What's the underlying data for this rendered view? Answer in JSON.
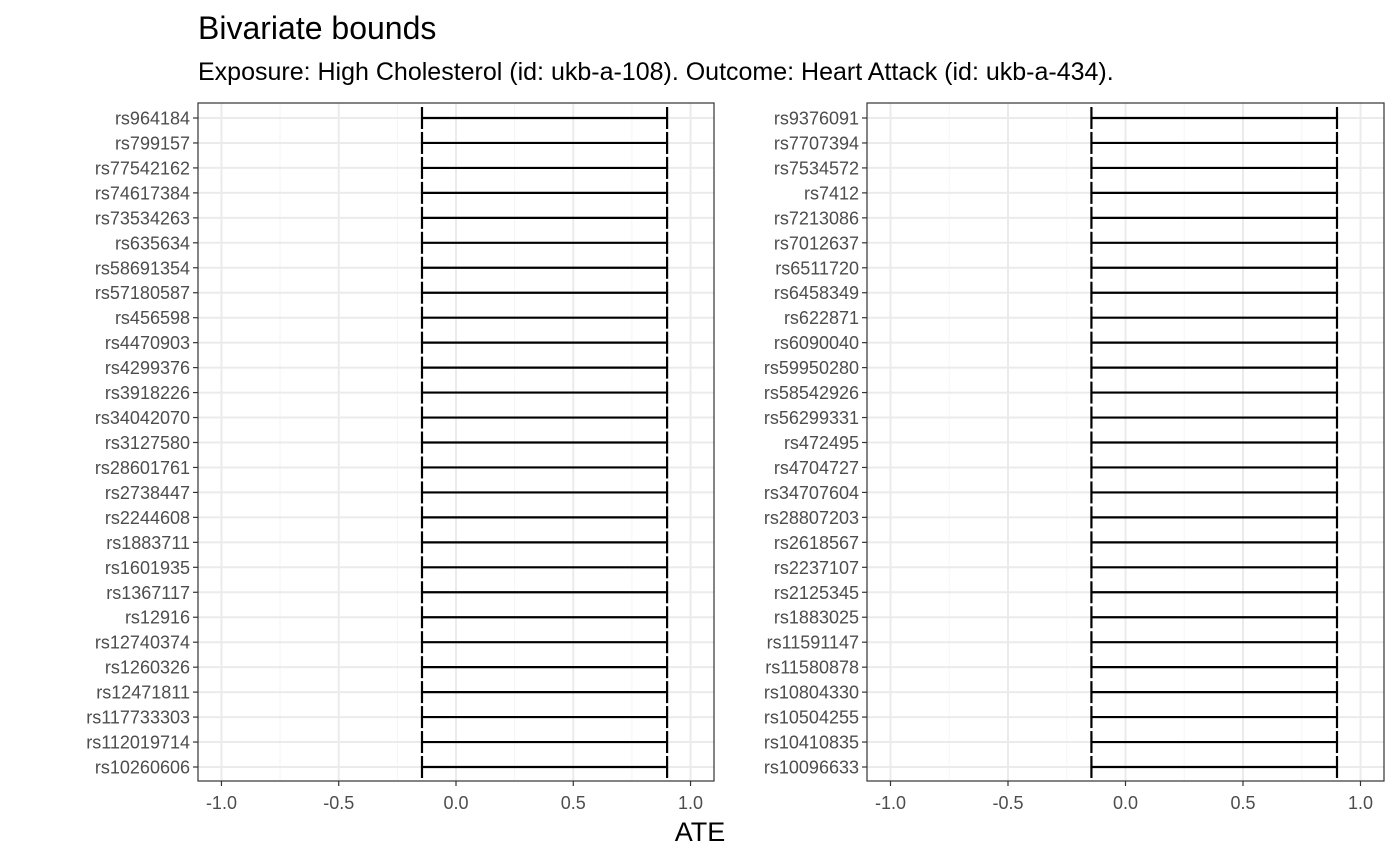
{
  "chart_data": {
    "type": "errorbar",
    "title": "Bivariate bounds",
    "subtitle": "Exposure: High Cholesterol (id: ukb-a-108). Outcome: Heart Attack (id: ukb-a-434).",
    "xlabel": "ATE",
    "xlim": [
      -1.1,
      1.1
    ],
    "xticks": [
      -1.0,
      -0.5,
      0.0,
      0.5,
      1.0
    ],
    "xtick_labels": [
      "-1.0",
      "-0.5",
      "0.0",
      "0.5",
      "1.0"
    ],
    "grid": true,
    "panels": [
      {
        "snps": [
          "rs964184",
          "rs799157",
          "rs77542162",
          "rs74617384",
          "rs73534263",
          "rs635634",
          "rs58691354",
          "rs57180587",
          "rs456598",
          "rs4470903",
          "rs4299376",
          "rs3918226",
          "rs34042070",
          "rs3127580",
          "rs28601761",
          "rs2738447",
          "rs2244608",
          "rs1883711",
          "rs1601935",
          "rs1367117",
          "rs12916",
          "rs12740374",
          "rs1260326",
          "rs12471811",
          "rs117733303",
          "rs112019714",
          "rs10260606"
        ],
        "lower": [
          -0.145,
          -0.145,
          -0.145,
          -0.145,
          -0.145,
          -0.145,
          -0.145,
          -0.145,
          -0.145,
          -0.145,
          -0.145,
          -0.145,
          -0.145,
          -0.145,
          -0.145,
          -0.145,
          -0.145,
          -0.145,
          -0.145,
          -0.145,
          -0.145,
          -0.145,
          -0.145,
          -0.145,
          -0.145,
          -0.145,
          -0.145
        ],
        "upper": [
          0.9,
          0.9,
          0.9,
          0.9,
          0.9,
          0.9,
          0.9,
          0.9,
          0.9,
          0.9,
          0.9,
          0.9,
          0.9,
          0.9,
          0.9,
          0.9,
          0.9,
          0.9,
          0.9,
          0.9,
          0.9,
          0.9,
          0.9,
          0.9,
          0.9,
          0.9,
          0.9
        ]
      },
      {
        "snps": [
          "rs9376091",
          "rs7707394",
          "rs7534572",
          "rs7412",
          "rs7213086",
          "rs7012637",
          "rs6511720",
          "rs6458349",
          "rs622871",
          "rs6090040",
          "rs59950280",
          "rs58542926",
          "rs56299331",
          "rs472495",
          "rs4704727",
          "rs34707604",
          "rs28807203",
          "rs2618567",
          "rs2237107",
          "rs2125345",
          "rs1883025",
          "rs11591147",
          "rs11580878",
          "rs10804330",
          "rs10504255",
          "rs10410835",
          "rs10096633"
        ],
        "lower": [
          -0.145,
          -0.145,
          -0.145,
          -0.145,
          -0.145,
          -0.145,
          -0.145,
          -0.145,
          -0.145,
          -0.145,
          -0.145,
          -0.145,
          -0.145,
          -0.145,
          -0.145,
          -0.145,
          -0.145,
          -0.145,
          -0.145,
          -0.145,
          -0.145,
          -0.145,
          -0.145,
          -0.145,
          -0.145,
          -0.145,
          -0.145
        ],
        "upper": [
          0.9,
          0.9,
          0.9,
          0.9,
          0.9,
          0.9,
          0.9,
          0.9,
          0.9,
          0.9,
          0.9,
          0.9,
          0.9,
          0.9,
          0.9,
          0.9,
          0.9,
          0.9,
          0.9,
          0.9,
          0.9,
          0.9,
          0.9,
          0.9,
          0.9,
          0.9,
          0.9
        ]
      }
    ]
  },
  "colors": {
    "grid_major": "#ebebeb",
    "grid_minor": "#f5f5f5",
    "panel_border": "#333333",
    "tick_label": "#4d4d4d",
    "errorbar": "#000000"
  }
}
